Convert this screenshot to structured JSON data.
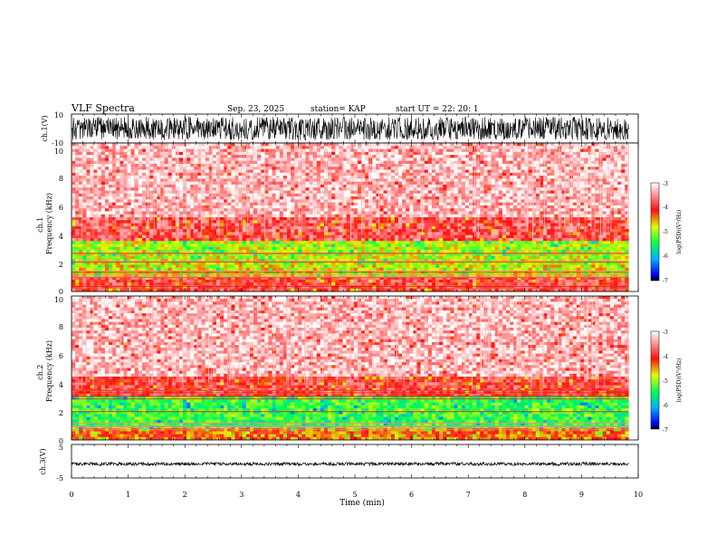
{
  "header": {
    "title": "VLF Spectra",
    "date": "Sep. 23, 2025",
    "station": "station= KAP",
    "start": "start  UT =   22: 20: 1"
  },
  "chart_data": [
    {
      "type": "line",
      "id": "ch1-waveform",
      "ylabel": "ch.1(V)",
      "ylim": [
        -10,
        10
      ],
      "yticks": [
        "10",
        "-10"
      ],
      "x_range_min": [
        0,
        9.83
      ],
      "amplitude_range_V": [
        -8,
        8
      ],
      "color": "#000000"
    },
    {
      "type": "heatmap",
      "id": "ch1-spectrogram",
      "ylabel": "ch.1\nFrequency (kHz)",
      "ylim": [
        0,
        10
      ],
      "yticks": [
        "0",
        "2",
        "4",
        "6",
        "8",
        "10"
      ],
      "x_range_min": [
        0,
        9.83
      ],
      "bands": [
        {
          "from_khz": 0.0,
          "to_khz": 1.0,
          "log_psd": -3.9
        },
        {
          "from_khz": 1.0,
          "to_khz": 2.0,
          "log_psd": -4.8
        },
        {
          "from_khz": 2.0,
          "to_khz": 3.4,
          "log_psd": -4.9
        },
        {
          "from_khz": 3.4,
          "to_khz": 5.0,
          "log_psd": -3.8
        },
        {
          "from_khz": 5.0,
          "to_khz": 10.0,
          "log_psd": -3.3
        }
      ],
      "colorbar": {
        "label": "log(PSD)(V²/Hz)",
        "range": [
          -7,
          -3
        ],
        "ticks": [
          "-3",
          "-4",
          "-5",
          "-6",
          "-7"
        ]
      }
    },
    {
      "type": "heatmap",
      "id": "ch2-spectrogram",
      "ylabel": "ch.2\nFrequency (kHz)",
      "ylim": [
        0,
        10
      ],
      "yticks": [
        "0",
        "2",
        "4",
        "6",
        "8",
        "10"
      ],
      "x_range_min": [
        0,
        9.83
      ],
      "bands": [
        {
          "from_khz": 0.0,
          "to_khz": 0.8,
          "log_psd": -4.3
        },
        {
          "from_khz": 0.8,
          "to_khz": 3.0,
          "log_psd": -5.3
        },
        {
          "from_khz": 3.0,
          "to_khz": 4.5,
          "log_psd": -3.9
        },
        {
          "from_khz": 4.5,
          "to_khz": 10.0,
          "log_psd": -3.3
        }
      ],
      "colorbar": {
        "label": "log(PSD)(V²/Hz)",
        "range": [
          -7,
          -3
        ],
        "ticks": [
          "-3",
          "-4",
          "-5",
          "-6",
          "-7"
        ]
      }
    },
    {
      "type": "line",
      "id": "ch3-waveform",
      "ylabel": "ch.3(V)",
      "ylim": [
        -5,
        5
      ],
      "yticks": [
        "5",
        "0",
        "-5"
      ],
      "x_range_min": [
        0,
        9.83
      ],
      "amplitude_range_V": [
        -1.3,
        -0.3
      ],
      "color": "#000000"
    }
  ],
  "xaxis": {
    "label": "Time (min)",
    "ticks": [
      "0",
      "1",
      "2",
      "3",
      "4",
      "5",
      "6",
      "7",
      "8",
      "9",
      "10"
    ],
    "range": [
      0,
      10
    ]
  }
}
